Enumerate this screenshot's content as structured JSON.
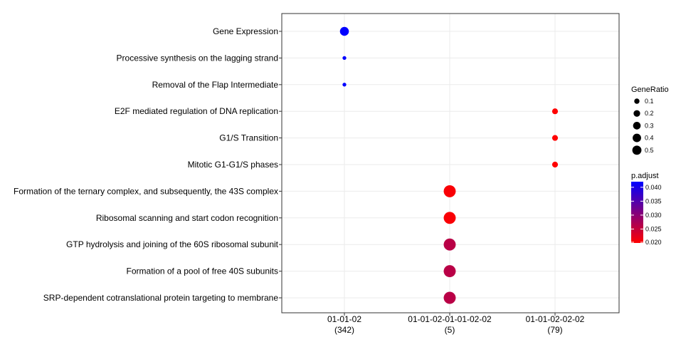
{
  "chart_data": {
    "type": "scatter",
    "title": "",
    "xlabel": "",
    "ylabel": "",
    "categories": [
      {
        "label": "01-01-02",
        "count": "(342)"
      },
      {
        "label": "01-01-02-01-01-02-02",
        "count": "(5)"
      },
      {
        "label": "01-01-02-02-02",
        "count": "(79)"
      }
    ],
    "terms": [
      "Gene Expression",
      "Processive synthesis on the lagging strand",
      "Removal of the Flap Intermediate",
      "E2F mediated regulation of DNA replication",
      "G1/S Transition",
      "Mitotic G1-G1/S phases",
      "Formation of the ternary complex, and subsequently, the 43S complex",
      "Ribosomal scanning and start codon recognition",
      "GTP hydrolysis and joining of the 60S ribosomal subunit",
      "Formation of a pool of free 40S subunits",
      "SRP-dependent cotranslational protein targeting to membrane"
    ],
    "points": [
      {
        "term": 0,
        "category": 0,
        "gene_ratio": 0.27,
        "p_adjust": 0.042
      },
      {
        "term": 1,
        "category": 0,
        "gene_ratio": 0.01,
        "p_adjust": 0.042
      },
      {
        "term": 2,
        "category": 0,
        "gene_ratio": 0.01,
        "p_adjust": 0.042
      },
      {
        "term": 3,
        "category": 2,
        "gene_ratio": 0.07,
        "p_adjust": 0.02
      },
      {
        "term": 4,
        "category": 2,
        "gene_ratio": 0.07,
        "p_adjust": 0.02
      },
      {
        "term": 5,
        "category": 2,
        "gene_ratio": 0.07,
        "p_adjust": 0.02
      },
      {
        "term": 6,
        "category": 1,
        "gene_ratio": 0.6,
        "p_adjust": 0.0205
      },
      {
        "term": 7,
        "category": 1,
        "gene_ratio": 0.6,
        "p_adjust": 0.0205
      },
      {
        "term": 8,
        "category": 1,
        "gene_ratio": 0.6,
        "p_adjust": 0.026
      },
      {
        "term": 9,
        "category": 1,
        "gene_ratio": 0.6,
        "p_adjust": 0.026
      },
      {
        "term": 10,
        "category": 1,
        "gene_ratio": 0.6,
        "p_adjust": 0.026
      }
    ],
    "size_legend": {
      "title": "GeneRatio",
      "breaks": [
        0.1,
        0.2,
        0.3,
        0.4,
        0.5
      ],
      "labels": [
        "0.1",
        "0.2",
        "0.3",
        "0.4",
        "0.5"
      ]
    },
    "color_legend": {
      "title": "p.adjust",
      "min": 0.02,
      "max": 0.042,
      "breaks": [
        0.02,
        0.025,
        0.03,
        0.035,
        0.04
      ],
      "labels": [
        "0.020",
        "0.025",
        "0.030",
        "0.035",
        "0.040"
      ],
      "low_color": "#ff0000",
      "high_color": "#0000ff"
    },
    "grid": true,
    "legend_position": "right"
  }
}
